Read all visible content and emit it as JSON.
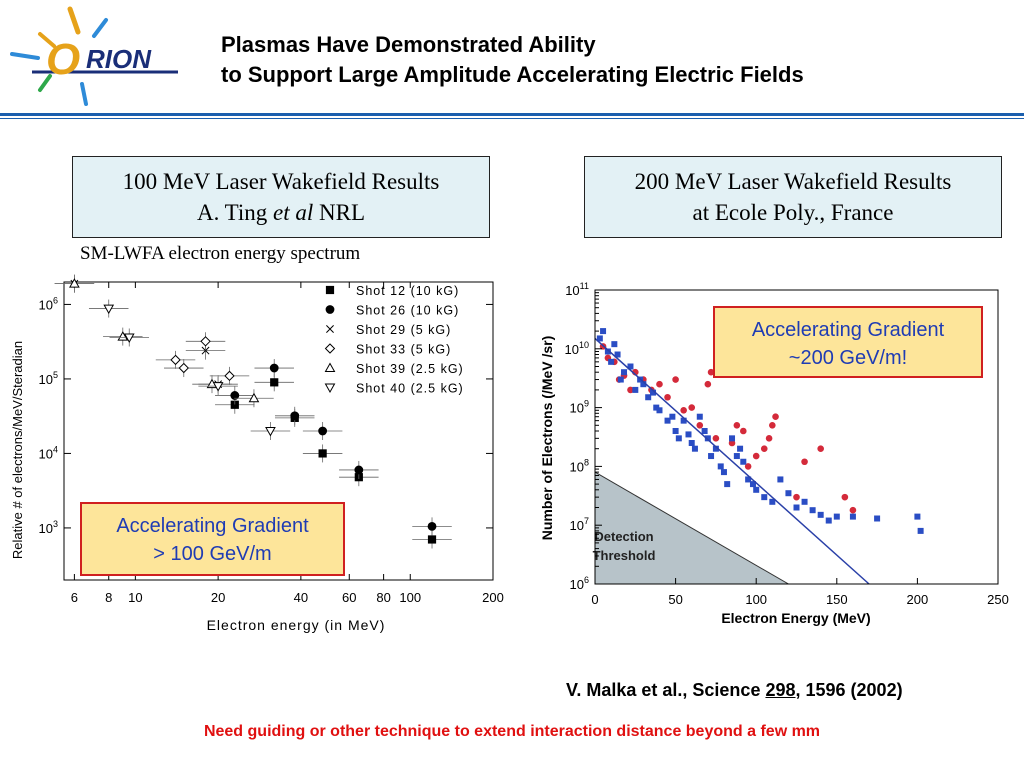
{
  "header": {
    "logo_text": "ORION",
    "title_line1": "Plasmas Have Demonstrated Ability",
    "title_line2": "to Support Large Amplitude Accelerating Electric Fields"
  },
  "left_panel": {
    "box_line1": "100 MeV Laser Wakefield Results",
    "box_line2_prefix": "A. Ting ",
    "box_line2_italic": "et al",
    "box_line2_suffix": " NRL",
    "caption": "SM-LWFA electron energy spectrum",
    "gradient_line1": "Accelerating Gradient",
    "gradient_line2": "> 100 GeV/m"
  },
  "right_panel": {
    "box_line1": "200 MeV Laser Wakefield Results",
    "box_line2": "at Ecole Poly., France",
    "gradient_line1": "Accelerating Gradient",
    "gradient_line2": "~200 GeV/m!",
    "detection_line1": "Detection",
    "detection_line2": "Threshold",
    "citation_prefix": "V. Malka et al., Science ",
    "citation_volume": "298",
    "citation_suffix": ", 1596 (2002)"
  },
  "footnote": "Need guiding or other technique to extend interaction distance beyond a few mm",
  "chart_data": [
    {
      "type": "scatter",
      "xlabel": "Electron energy (in MeV)",
      "ylabel": "Relative # of electrons/MeV/Steradian",
      "xscale": "log",
      "yscale": "log",
      "xlim": [
        5.5,
        200
      ],
      "ylim": [
        200,
        2000000
      ],
      "x_ticks": [
        "6",
        "8",
        "10",
        "20",
        "40",
        "60",
        "80",
        "100",
        "200"
      ],
      "y_ticks": [
        {
          "base": "10",
          "exp": "6"
        },
        {
          "base": "10",
          "exp": "5"
        },
        {
          "base": "10",
          "exp": "4"
        },
        {
          "base": "10",
          "exp": "3"
        }
      ],
      "legend_position": "top-right",
      "series": [
        {
          "name": "Shot 12 (10 kG)",
          "marker": "square",
          "points": [
            [
              23,
              45000
            ],
            [
              32,
              90000
            ],
            [
              38,
              30000
            ],
            [
              48,
              10000
            ],
            [
              65,
              4800
            ],
            [
              120,
              700
            ]
          ]
        },
        {
          "name": "Shot 26 (10 kG)",
          "marker": "circle",
          "points": [
            [
              23,
              60000
            ],
            [
              32,
              140000
            ],
            [
              38,
              32000
            ],
            [
              48,
              20000
            ],
            [
              65,
              6000
            ],
            [
              120,
              1050
            ]
          ]
        },
        {
          "name": "Shot 29 (5 kG)",
          "marker": "cross",
          "points": [
            [
              6,
              1900000
            ],
            [
              18,
              240000
            ],
            [
              20,
              85000
            ]
          ]
        },
        {
          "name": "Shot 33 (5 kG)",
          "marker": "diamond",
          "points": [
            [
              14,
              180000
            ],
            [
              15,
              140000
            ],
            [
              18,
              320000
            ],
            [
              22,
              110000
            ]
          ]
        },
        {
          "name": "Shot 39 (2.5 kG)",
          "marker": "triangle-up",
          "points": [
            [
              6,
              1900000
            ],
            [
              9,
              370000
            ],
            [
              19,
              85000
            ],
            [
              27,
              55000
            ]
          ]
        },
        {
          "name": "Shot 40 (2.5 kG)",
          "marker": "triangle-down",
          "points": [
            [
              8,
              880000
            ],
            [
              9.5,
              360000
            ],
            [
              20,
              80000
            ],
            [
              31,
              20000
            ]
          ]
        }
      ]
    },
    {
      "type": "scatter",
      "xlabel": "Electron Energy (MeV)",
      "ylabel": "Number of Electrons (/MeV /sr)",
      "yscale": "log",
      "xlim": [
        0,
        250
      ],
      "ylim": [
        1000000,
        100000000000
      ],
      "x_ticks": [
        "0",
        "50",
        "100",
        "150",
        "200",
        "250"
      ],
      "y_ticks": [
        {
          "base": "10",
          "exp": "6"
        },
        {
          "base": "10",
          "exp": "7"
        },
        {
          "base": "10",
          "exp": "8"
        },
        {
          "base": "10",
          "exp": "9"
        },
        {
          "base": "10",
          "exp": "10"
        },
        {
          "base": "10",
          "exp": "11"
        }
      ],
      "fit_line": [
        [
          0,
          15000000000
        ],
        [
          170,
          1000000
        ]
      ],
      "detection_threshold": [
        [
          0,
          80000000
        ],
        [
          120,
          1000000
        ]
      ],
      "series": [
        {
          "color": "#d42a3a",
          "marker": "circle",
          "points": [
            [
              5,
              11000000000
            ],
            [
              8,
              7000000000
            ],
            [
              12,
              6000000000
            ],
            [
              15,
              3000000000
            ],
            [
              18,
              3500000000
            ],
            [
              22,
              2000000000
            ],
            [
              25,
              4000000000
            ],
            [
              30,
              3000000000
            ],
            [
              35,
              2000000000
            ],
            [
              40,
              2500000000
            ],
            [
              45,
              1500000000
            ],
            [
              50,
              3000000000
            ],
            [
              55,
              900000000
            ],
            [
              60,
              1000000000
            ],
            [
              65,
              500000000
            ],
            [
              70,
              2500000000
            ],
            [
              72,
              4000000000
            ],
            [
              75,
              300000000
            ],
            [
              85,
              250000000
            ],
            [
              88,
              500000000
            ],
            [
              92,
              400000000
            ],
            [
              95,
              100000000
            ],
            [
              100,
              150000000
            ],
            [
              105,
              200000000
            ],
            [
              108,
              300000000
            ],
            [
              110,
              500000000
            ],
            [
              112,
              700000000
            ],
            [
              125,
              30000000
            ],
            [
              130,
              120000000
            ],
            [
              140,
              200000000
            ],
            [
              155,
              30000000
            ],
            [
              160,
              18000000
            ]
          ]
        },
        {
          "color": "#2a4dc4",
          "marker": "square",
          "points": [
            [
              3,
              15000000000
            ],
            [
              5,
              20000000000
            ],
            [
              8,
              9000000000
            ],
            [
              10,
              6000000000
            ],
            [
              12,
              12000000000
            ],
            [
              14,
              8000000000
            ],
            [
              16,
              3000000000
            ],
            [
              18,
              4000000000
            ],
            [
              22,
              5000000000
            ],
            [
              25,
              2000000000
            ],
            [
              28,
              3000000000
            ],
            [
              30,
              2500000000
            ],
            [
              33,
              1500000000
            ],
            [
              36,
              1800000000
            ],
            [
              38,
              1000000000
            ],
            [
              40,
              900000000
            ],
            [
              45,
              600000000
            ],
            [
              48,
              700000000
            ],
            [
              50,
              400000000
            ],
            [
              52,
              300000000
            ],
            [
              55,
              600000000
            ],
            [
              58,
              350000000
            ],
            [
              60,
              250000000
            ],
            [
              62,
              200000000
            ],
            [
              65,
              700000000
            ],
            [
              68,
              400000000
            ],
            [
              70,
              300000000
            ],
            [
              72,
              150000000
            ],
            [
              75,
              200000000
            ],
            [
              78,
              100000000
            ],
            [
              80,
              80000000
            ],
            [
              82,
              50000000
            ],
            [
              85,
              300000000
            ],
            [
              88,
              150000000
            ],
            [
              90,
              200000000
            ],
            [
              92,
              120000000
            ],
            [
              95,
              60000000
            ],
            [
              98,
              50000000
            ],
            [
              100,
              40000000
            ],
            [
              105,
              30000000
            ],
            [
              110,
              25000000
            ],
            [
              115,
              60000000
            ],
            [
              120,
              35000000
            ],
            [
              125,
              20000000
            ],
            [
              130,
              25000000
            ],
            [
              135,
              18000000
            ],
            [
              140,
              15000000
            ],
            [
              145,
              12000000
            ],
            [
              150,
              14000000
            ],
            [
              160,
              14000000
            ],
            [
              175,
              13000000
            ],
            [
              200,
              14000000
            ],
            [
              202,
              8000000
            ]
          ]
        }
      ]
    }
  ]
}
